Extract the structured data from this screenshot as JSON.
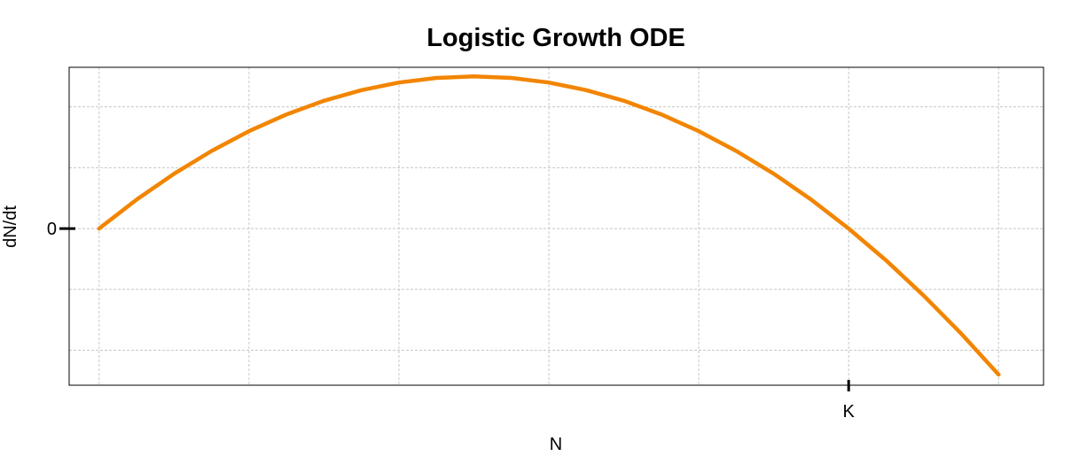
{
  "chart_data": {
    "type": "line",
    "title": "Logistic Growth ODE",
    "xlabel": "N",
    "ylabel": "dN/dt",
    "xlim": [
      -0.04,
      1.26
    ],
    "ylim": [
      -1.03,
      1.06
    ],
    "x_ticks": [
      {
        "value": 1.0,
        "label": "K"
      }
    ],
    "y_ticks": [
      {
        "value": 0,
        "label": "0"
      }
    ],
    "grid": true,
    "series": [
      {
        "color": "#f28500",
        "x": [
          0,
          0.05,
          0.1,
          0.15,
          0.2,
          0.25,
          0.3,
          0.35,
          0.4,
          0.45,
          0.5,
          0.55,
          0.6,
          0.65,
          0.7,
          0.75,
          0.8,
          0.85,
          0.9,
          0.95,
          1.0,
          1.05,
          1.1,
          1.15,
          1.2
        ],
        "y": [
          0,
          0.19,
          0.36,
          0.51,
          0.64,
          0.75,
          0.84,
          0.91,
          0.96,
          0.99,
          1.0,
          0.99,
          0.96,
          0.91,
          0.84,
          0.75,
          0.64,
          0.51,
          0.36,
          0.19,
          0,
          -0.21,
          -0.44,
          -0.69,
          -0.96
        ]
      }
    ]
  }
}
